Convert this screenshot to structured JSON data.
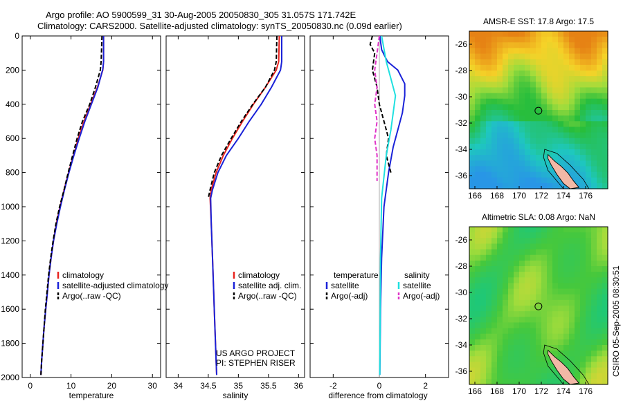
{
  "header": {
    "line1": "Argo profile: AO 5900599_31 30-Aug-2005 20050830_305 31.057S 171.742E",
    "line2": "Climatology: CARS2000. Satellite-adjusted climatology: synTS_20050830.nc (0.09d earlier)"
  },
  "side_stamp": "CSIRO 05-Sep-2005 08:30:51",
  "project_note": {
    "line1": "US ARGO PROJECT",
    "line2": "PI: STEPHEN RISER"
  },
  "colors": {
    "climatology": "#e8231e",
    "satellite": "#1a22d8",
    "argo": "#000000",
    "sal_satellite": "#1fe0e0",
    "sal_argo": "#e034c8"
  },
  "chart_data": [
    {
      "type": "line",
      "panel": "temperature",
      "xlabel": "temperature",
      "ylabel": "",
      "xlim": [
        -2,
        32
      ],
      "ylim": [
        2000,
        0
      ],
      "xticks": [
        "0",
        "10",
        "20",
        "30"
      ],
      "yticks": [
        "0",
        "200",
        "400",
        "600",
        "800",
        "1000",
        "1200",
        "1400",
        "1600",
        "1800",
        "2000"
      ],
      "legend": [
        "climatology",
        "satellite-adjusted climatology",
        "Argo(..raw -QC)"
      ],
      "series": [
        {
          "name": "climatology",
          "style": "solid",
          "color_key": "climatology",
          "points": [
            [
              18.0,
              0
            ],
            [
              18.0,
              150
            ],
            [
              17.8,
              200
            ],
            [
              16.5,
              300
            ],
            [
              14.8,
              400
            ],
            [
              13.2,
              500
            ],
            [
              11.8,
              600
            ],
            [
              10.6,
              700
            ],
            [
              9.4,
              800
            ],
            [
              8.3,
              900
            ],
            [
              7.3,
              1000
            ],
            [
              6.4,
              1100
            ],
            [
              5.7,
              1200
            ],
            [
              5.1,
              1300
            ],
            [
              4.6,
              1400
            ],
            [
              4.2,
              1500
            ],
            [
              3.8,
              1600
            ],
            [
              3.4,
              1700
            ],
            [
              3.1,
              1800
            ],
            [
              2.8,
              1900
            ],
            [
              2.6,
              1985
            ]
          ]
        },
        {
          "name": "satellite-adjusted climatology",
          "style": "solid",
          "color_key": "satellite",
          "points": [
            [
              18.0,
              0
            ],
            [
              18.0,
              150
            ],
            [
              17.8,
              195
            ],
            [
              16.6,
              300
            ],
            [
              15.0,
              400
            ],
            [
              13.4,
              500
            ],
            [
              12.0,
              600
            ],
            [
              10.7,
              700
            ],
            [
              9.5,
              800
            ],
            [
              8.4,
              900
            ],
            [
              7.4,
              1000
            ],
            [
              6.5,
              1100
            ],
            [
              5.7,
              1200
            ],
            [
              5.1,
              1300
            ],
            [
              4.6,
              1400
            ],
            [
              4.2,
              1500
            ],
            [
              3.8,
              1600
            ],
            [
              3.4,
              1700
            ],
            [
              3.1,
              1800
            ],
            [
              2.8,
              1900
            ],
            [
              2.6,
              1985
            ]
          ]
        },
        {
          "name": "Argo(..raw -QC)",
          "style": "dashed",
          "color_key": "argo",
          "points": [
            [
              17.6,
              0
            ],
            [
              17.4,
              150
            ],
            [
              17.2,
              200
            ],
            [
              16.0,
              300
            ],
            [
              14.6,
              400
            ],
            [
              12.8,
              500
            ],
            [
              11.5,
              600
            ],
            [
              10.4,
              700
            ],
            [
              9.3,
              800
            ],
            [
              8.3,
              900
            ],
            [
              7.2,
              1000
            ],
            [
              6.3,
              1100
            ],
            [
              5.6,
              1200
            ],
            [
              5.0,
              1300
            ],
            [
              4.5,
              1400
            ],
            [
              4.1,
              1500
            ],
            [
              3.7,
              1600
            ],
            [
              3.4,
              1700
            ],
            [
              3.1,
              1800
            ],
            [
              2.8,
              1900
            ],
            [
              2.6,
              1985
            ]
          ]
        }
      ]
    },
    {
      "type": "line",
      "panel": "salinity",
      "xlabel": "salinity",
      "ylabel": "",
      "xlim": [
        33.8,
        36.1
      ],
      "ylim": [
        2000,
        0
      ],
      "xticks": [
        "34",
        "34.5",
        "35",
        "35.5",
        "36"
      ],
      "yticks": [],
      "legend": [
        "climatology",
        "satellite adj. clim.",
        "Argo(..raw -QC)"
      ],
      "series": [
        {
          "name": "climatology",
          "style": "solid",
          "color_key": "climatology",
          "points": [
            [
              35.68,
              0
            ],
            [
              35.67,
              150
            ],
            [
              35.63,
              200
            ],
            [
              35.45,
              300
            ],
            [
              35.25,
              400
            ],
            [
              35.07,
              500
            ],
            [
              34.9,
              600
            ],
            [
              34.75,
              700
            ],
            [
              34.63,
              800
            ],
            [
              34.55,
              900
            ],
            [
              34.53,
              950
            ],
            [
              34.55,
              1100
            ],
            [
              34.57,
              1300
            ],
            [
              34.59,
              1500
            ],
            [
              34.61,
              1700
            ],
            [
              34.63,
              1900
            ],
            [
              34.64,
              1985
            ]
          ]
        },
        {
          "name": "satellite adj. clim.",
          "style": "solid",
          "color_key": "satellite",
          "points": [
            [
              35.72,
              0
            ],
            [
              35.72,
              150
            ],
            [
              35.7,
              200
            ],
            [
              35.55,
              300
            ],
            [
              35.38,
              400
            ],
            [
              35.18,
              500
            ],
            [
              35.0,
              600
            ],
            [
              34.8,
              700
            ],
            [
              34.66,
              800
            ],
            [
              34.57,
              900
            ],
            [
              34.54,
              950
            ],
            [
              34.55,
              1100
            ],
            [
              34.57,
              1300
            ],
            [
              34.59,
              1500
            ],
            [
              34.61,
              1700
            ],
            [
              34.63,
              1900
            ],
            [
              34.64,
              1985
            ]
          ]
        },
        {
          "name": "Argo(..raw -QC)",
          "style": "dashed",
          "color_key": "argo",
          "points": [
            [
              35.64,
              0
            ],
            [
              35.63,
              150
            ],
            [
              35.6,
              200
            ],
            [
              35.45,
              300
            ],
            [
              35.24,
              400
            ],
            [
              35.05,
              500
            ],
            [
              34.88,
              600
            ],
            [
              34.72,
              700
            ],
            [
              34.6,
              800
            ],
            [
              34.53,
              900
            ],
            [
              34.5,
              950
            ]
          ]
        }
      ]
    },
    {
      "type": "line",
      "panel": "difference",
      "xlabel": "difference from climatology",
      "ylabel": "",
      "xlim": [
        -3,
        3
      ],
      "ylim": [
        2000,
        0
      ],
      "xticks": [
        "-2",
        "0",
        "2"
      ],
      "yticks": [],
      "legend_headers": [
        "temperature",
        "salinity"
      ],
      "legend": [
        "satellite",
        "Argo(-adj)",
        "satellite",
        "Argo(-adj)"
      ],
      "series": [
        {
          "name": "temperature satellite",
          "style": "solid",
          "color_key": "satellite",
          "points": [
            [
              0.02,
              0
            ],
            [
              0.1,
              80
            ],
            [
              0.35,
              150
            ],
            [
              0.8,
              200
            ],
            [
              1.1,
              280
            ],
            [
              1.1,
              350
            ],
            [
              1.0,
              450
            ],
            [
              0.8,
              550
            ],
            [
              0.6,
              650
            ],
            [
              0.4,
              800
            ],
            [
              0.2,
              1000
            ],
            [
              0.1,
              1300
            ],
            [
              0.05,
              1600
            ],
            [
              0.02,
              1985
            ]
          ]
        },
        {
          "name": "temperature Argo(-adj)",
          "style": "dashed",
          "color_key": "argo",
          "points": [
            [
              -0.3,
              0
            ],
            [
              -0.4,
              50
            ],
            [
              -0.2,
              100
            ],
            [
              -0.3,
              200
            ],
            [
              -0.1,
              300
            ],
            [
              0.0,
              400
            ],
            [
              0.2,
              500
            ],
            [
              0.4,
              600
            ],
            [
              0.3,
              700
            ],
            [
              0.5,
              800
            ]
          ]
        },
        {
          "name": "salinity satellite",
          "style": "solid",
          "color_key": "sal_satellite",
          "points": [
            [
              0.1,
              0
            ],
            [
              0.3,
              150
            ],
            [
              0.5,
              250
            ],
            [
              0.7,
              350
            ],
            [
              0.6,
              450
            ],
            [
              0.5,
              550
            ],
            [
              0.3,
              700
            ],
            [
              0.1,
              950
            ],
            [
              0.05,
              1300
            ],
            [
              0.02,
              1985
            ]
          ]
        },
        {
          "name": "salinity Argo(-adj)",
          "style": "dashed",
          "color_key": "sal_argo",
          "points": [
            [
              0.0,
              0
            ],
            [
              -0.1,
              100
            ],
            [
              -0.2,
              200
            ],
            [
              -0.1,
              300
            ],
            [
              -0.2,
              400
            ],
            [
              -0.1,
              500
            ],
            [
              -0.2,
              600
            ],
            [
              -0.1,
              700
            ],
            [
              -0.1,
              850
            ]
          ]
        }
      ]
    }
  ],
  "maps": [
    {
      "title": "AMSR-E SST: 17.8 Argo: 17.5",
      "kind": "sst",
      "xticks": [
        "166",
        "168",
        "170",
        "172",
        "174",
        "176"
      ],
      "yticks": [
        "-26",
        "-28",
        "-30",
        "-32",
        "-34",
        "-36"
      ],
      "xlim": [
        165.5,
        178.0
      ],
      "ylim": [
        -37.0,
        -25.0
      ],
      "float": [
        171.74,
        -31.06
      ]
    },
    {
      "title": "Altimetric SLA: 0.08 Argo: NaN",
      "kind": "sla",
      "xticks": [
        "166",
        "168",
        "170",
        "172",
        "174",
        "176"
      ],
      "yticks": [
        "-26",
        "-28",
        "-30",
        "-32",
        "-34",
        "-36"
      ],
      "xlim": [
        165.5,
        178.0
      ],
      "ylim": [
        -37.0,
        -25.0
      ],
      "float": [
        171.74,
        -31.06
      ]
    }
  ]
}
